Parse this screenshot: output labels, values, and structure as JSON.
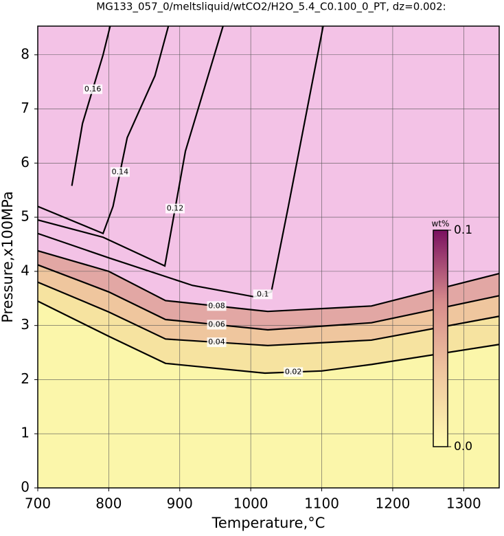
{
  "chart_data": {
    "type": "contour",
    "title": "MG133_057_0/meltsliquid/wtCO2/H2O_5.4_C0.100_0_PT, dz=0.002:",
    "x_label": "Temperature,°C",
    "y_label": "Pressure,x100MPa",
    "xlim": [
      700,
      1350
    ],
    "ylim": [
      0,
      8.53
    ],
    "xticks": [
      700,
      800,
      900,
      1000,
      1100,
      1200,
      1300
    ],
    "yticks": [
      0,
      1,
      2,
      3,
      4,
      5,
      6,
      7,
      8
    ],
    "grid": true,
    "color": "#fbf6aa",
    "contours": [
      {
        "level": 0.02,
        "fill": "#f6e3a0",
        "x": [
          700,
          800,
          880,
          1020,
          1100,
          1170,
          1350
        ],
        "y": [
          3.45,
          2.8,
          2.3,
          2.12,
          2.16,
          2.28,
          2.65
        ]
      },
      {
        "level": 0.04,
        "fill": "#efc69e",
        "x": [
          700,
          800,
          880,
          1024,
          1170,
          1350
        ],
        "y": [
          3.8,
          3.25,
          2.75,
          2.63,
          2.73,
          3.17
        ]
      },
      {
        "level": 0.06,
        "fill": "#e2a7a4",
        "x": [
          700,
          800,
          880,
          1024,
          1170,
          1350
        ],
        "y": [
          4.12,
          3.62,
          3.11,
          2.92,
          3.05,
          3.55
        ]
      },
      {
        "level": 0.08,
        "fill": "#f3c2e6",
        "x": [
          700,
          800,
          880,
          1024,
          1170,
          1350
        ],
        "y": [
          4.38,
          4.0,
          3.46,
          3.26,
          3.36,
          3.96
        ]
      },
      {
        "level": 0.1,
        "x": [
          700,
          800,
          918,
          1005,
          1029,
          1053,
          1102
        ],
        "y": [
          4.7,
          4.25,
          3.74,
          3.53,
          3.62,
          5.2,
          8.53
        ]
      },
      {
        "level": 0.12,
        "x": [
          700,
          792,
          879,
          908,
          961
        ],
        "y": [
          4.95,
          4.63,
          4.1,
          6.22,
          8.53
        ]
      },
      {
        "level": 0.14,
        "x": [
          700,
          792,
          806,
          826,
          865,
          884
        ],
        "y": [
          5.2,
          4.7,
          5.2,
          6.47,
          7.61,
          8.53
        ]
      },
      {
        "level": 0.16,
        "x": [
          748,
          763,
          792,
          802
        ],
        "y": [
          5.58,
          6.73,
          8.0,
          8.53
        ]
      }
    ],
    "colorbar": {
      "label": "wt%",
      "colors": [
        "#fffbb0",
        "#f0c8a0",
        "#d88c8c",
        "#7a1060"
      ],
      "ticks": [
        {
          "value": 0,
          "label": "0.0"
        },
        {
          "value": 0.1,
          "label": "0.1"
        }
      ]
    }
  }
}
